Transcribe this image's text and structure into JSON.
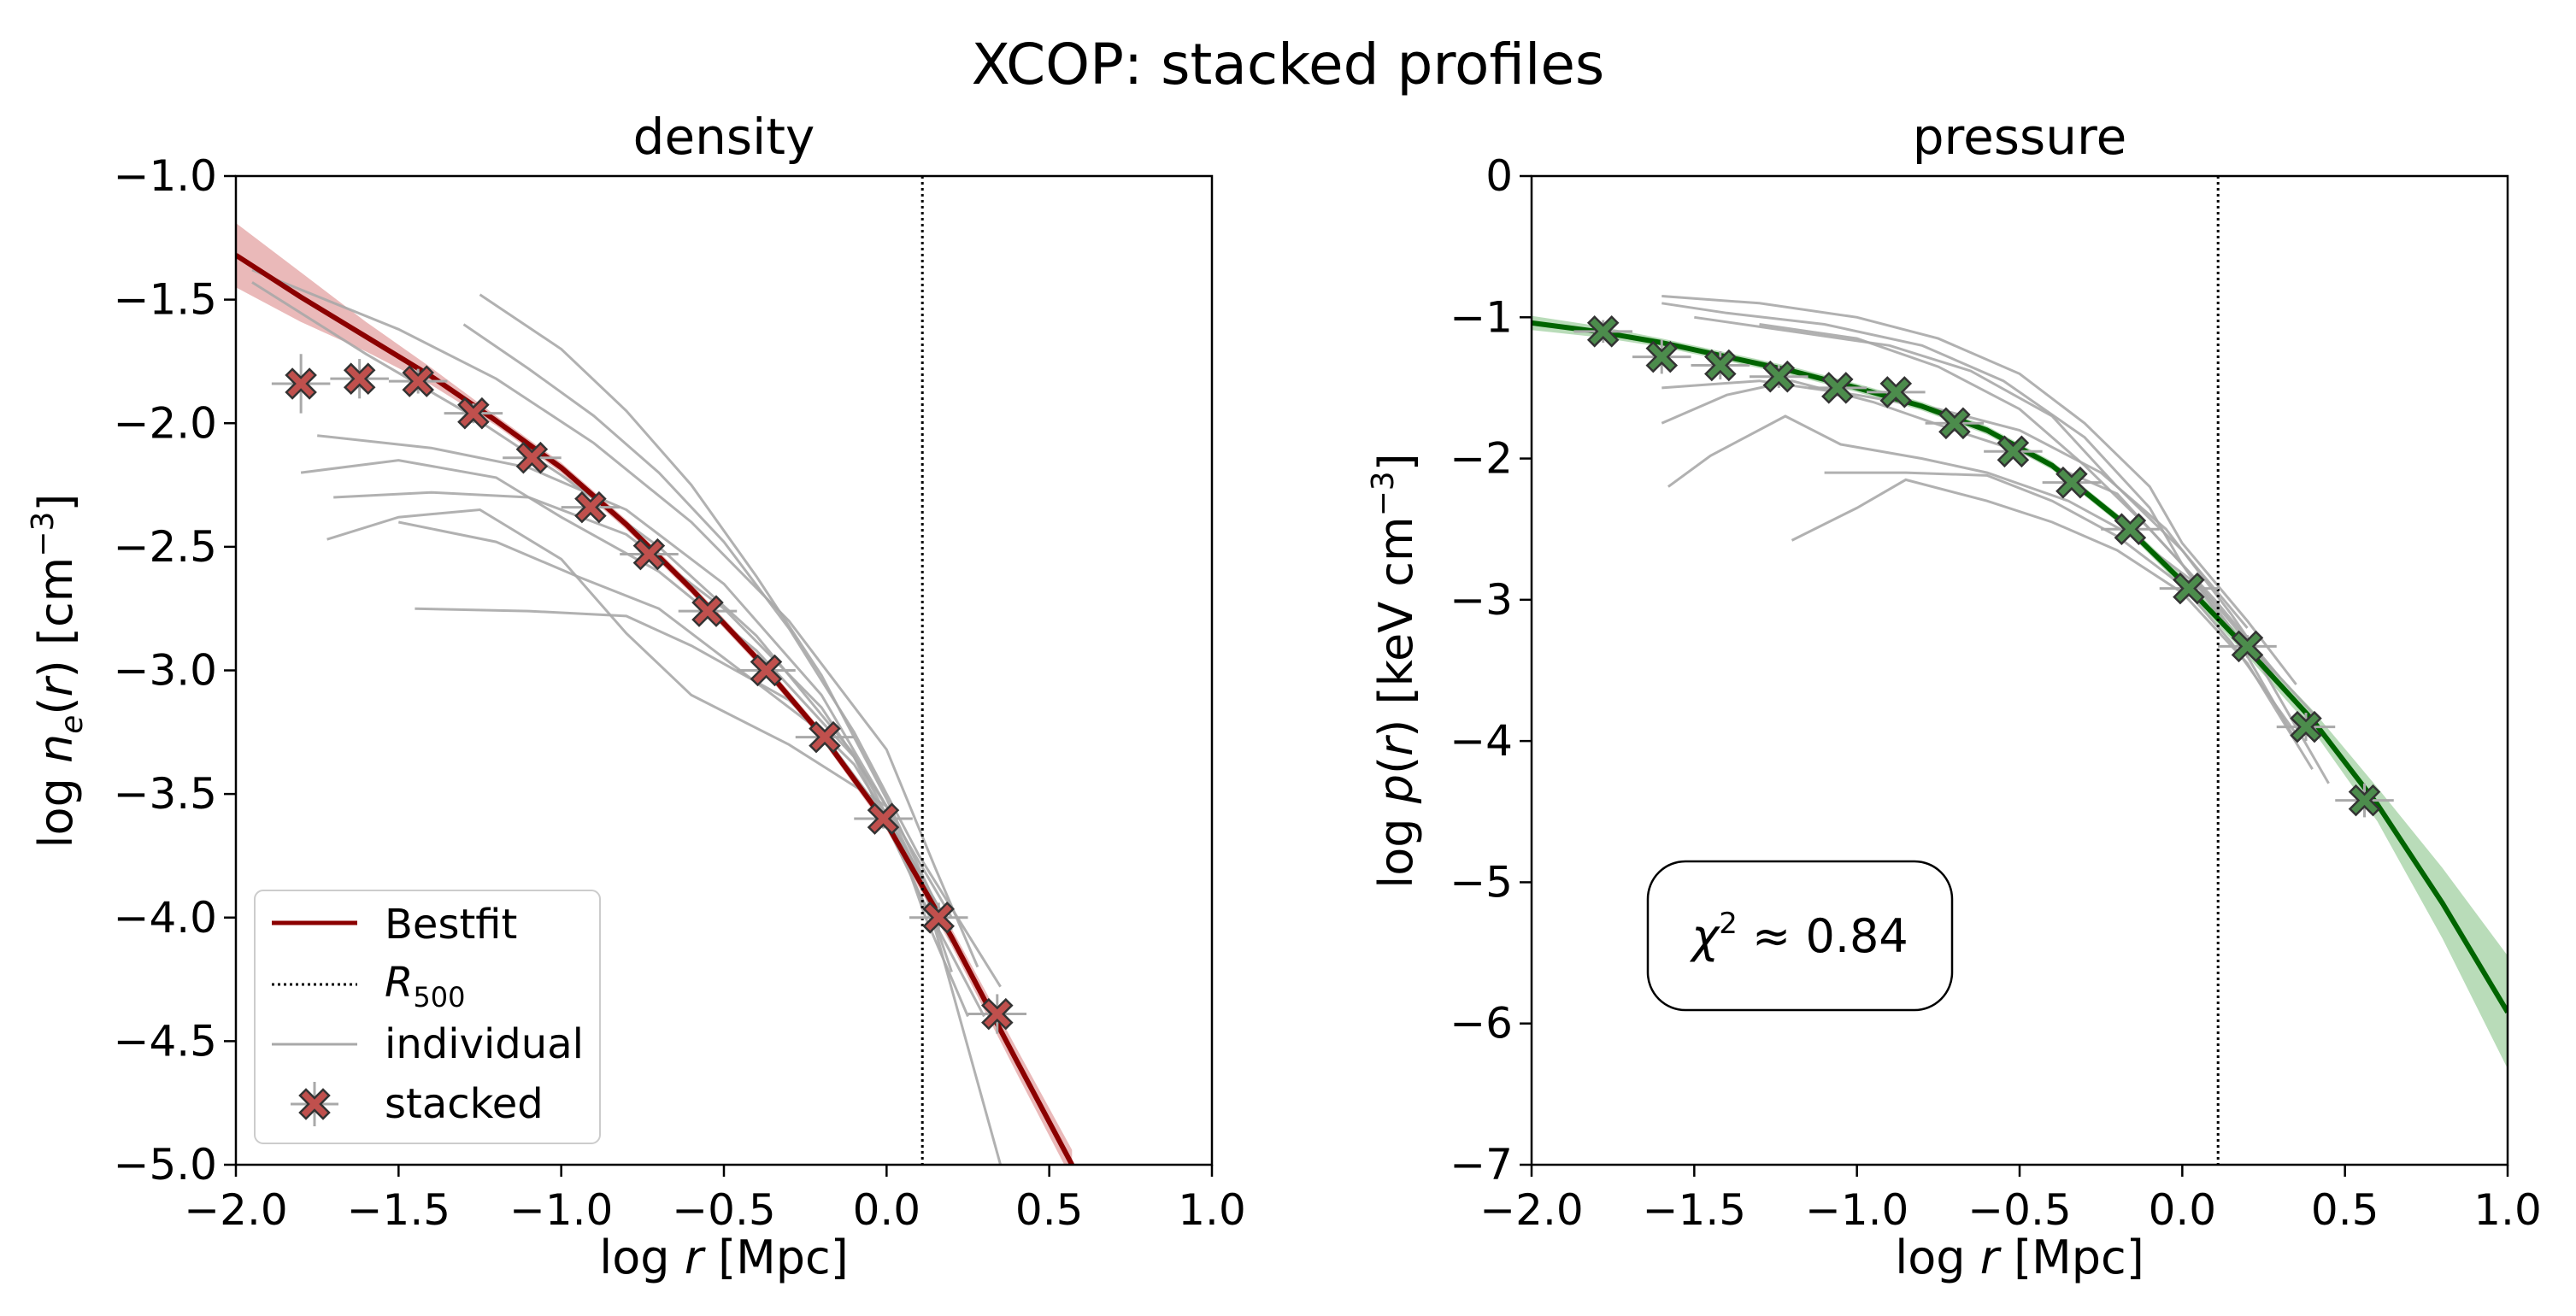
{
  "figure_title": "XCOP: stacked profiles",
  "chart_data": [
    {
      "type": "line",
      "title": "density",
      "xlabel": "log r [Mpc]",
      "ylabel": "log n_e(r) [cm^-3]",
      "xlim": [
        -2.0,
        1.0
      ],
      "ylim": [
        -5.0,
        -1.0
      ],
      "xticks": [
        -2.0,
        -1.5,
        -1.0,
        -0.5,
        0.0,
        0.5,
        1.0
      ],
      "xtick_labels": [
        "−2.0",
        "−1.5",
        "−1.0",
        "−0.5",
        "0.0",
        "0.5",
        "1.0"
      ],
      "yticks": [
        -5.0,
        -4.5,
        -4.0,
        -3.5,
        -3.0,
        -2.5,
        -2.0,
        -1.5,
        -1.0
      ],
      "ytick_labels": [
        "−5.0",
        "−4.5",
        "−4.0",
        "−3.5",
        "−3.0",
        "−2.5",
        "−2.0",
        "−1.5",
        "−1.0"
      ],
      "r500": 0.11,
      "color": "#8b0000",
      "band_color": "#d98080",
      "marker_color": "#c0504d",
      "bestfit": {
        "x": [
          -2.0,
          -1.8,
          -1.6,
          -1.4,
          -1.2,
          -1.0,
          -0.8,
          -0.6,
          -0.4,
          -0.2,
          0.0,
          0.2,
          0.4,
          0.57
        ],
        "y": [
          -1.32,
          -1.49,
          -1.65,
          -1.81,
          -1.99,
          -2.18,
          -2.41,
          -2.67,
          -2.95,
          -3.26,
          -3.62,
          -4.08,
          -4.58,
          -5.0
        ],
        "band_half_width": [
          0.13,
          0.1,
          0.06,
          0.035,
          0.02,
          0.02,
          0.02,
          0.02,
          0.02,
          0.02,
          0.025,
          0.035,
          0.05,
          0.06
        ]
      },
      "stacked": {
        "x": [
          -1.8,
          -1.62,
          -1.44,
          -1.27,
          -1.09,
          -0.91,
          -0.73,
          -0.55,
          -0.37,
          -0.19,
          -0.01,
          0.16,
          0.34
        ],
        "y": [
          -1.84,
          -1.82,
          -1.83,
          -1.96,
          -2.14,
          -2.34,
          -2.53,
          -2.76,
          -3.0,
          -3.27,
          -3.6,
          -4.0,
          -4.39
        ],
        "xerr": 0.09,
        "yerr": [
          0.12,
          0.08,
          0.05,
          0.04,
          0.03,
          0.03,
          0.03,
          0.03,
          0.03,
          0.03,
          0.04,
          0.06,
          0.08
        ]
      },
      "individual": [
        {
          "x": [
            -1.95,
            -1.6,
            -1.3,
            -1.0,
            -0.7,
            -0.4,
            -0.1,
            0.1,
            0.2
          ],
          "y": [
            -1.43,
            -1.72,
            -1.95,
            -2.21,
            -2.5,
            -2.86,
            -3.34,
            -3.83,
            -4.22
          ]
        },
        {
          "x": [
            -1.95,
            -1.5,
            -1.2,
            -0.9,
            -0.6,
            -0.3,
            0.0,
            0.15,
            0.28
          ],
          "y": [
            -1.38,
            -1.62,
            -1.82,
            -2.08,
            -2.4,
            -2.8,
            -3.32,
            -3.8,
            -4.2
          ]
        },
        {
          "x": [
            -1.3,
            -1.1,
            -0.9,
            -0.7,
            -0.5,
            -0.3,
            -0.1,
            0.1,
            0.35
          ],
          "y": [
            -1.6,
            -1.78,
            -1.97,
            -2.2,
            -2.48,
            -2.83,
            -3.25,
            -3.75,
            -4.28
          ]
        },
        {
          "x": [
            -1.25,
            -1.0,
            -0.8,
            -0.6,
            -0.4,
            -0.2,
            0.0,
            0.2
          ],
          "y": [
            -1.48,
            -1.7,
            -1.95,
            -2.25,
            -2.62,
            -3.02,
            -3.52,
            -4.08
          ]
        },
        {
          "x": [
            -1.75,
            -1.4,
            -1.1,
            -0.8,
            -0.5,
            -0.2,
            0.0,
            0.2
          ],
          "y": [
            -2.05,
            -2.1,
            -2.18,
            -2.35,
            -2.65,
            -3.1,
            -3.55,
            -4.1
          ]
        },
        {
          "x": [
            -1.8,
            -1.5,
            -1.2,
            -1.0,
            -0.7,
            -0.4,
            -0.1,
            0.1,
            0.3
          ],
          "y": [
            -2.2,
            -2.15,
            -2.22,
            -2.38,
            -2.6,
            -2.92,
            -3.35,
            -3.9,
            -4.4
          ]
        },
        {
          "x": [
            -1.7,
            -1.4,
            -1.1,
            -0.8,
            -0.5,
            -0.2,
            0.0,
            0.2
          ],
          "y": [
            -2.3,
            -2.28,
            -2.3,
            -2.45,
            -2.75,
            -3.15,
            -3.55,
            -4.0
          ]
        },
        {
          "x": [
            -1.72,
            -1.5,
            -1.25,
            -1.0,
            -0.8,
            -0.6,
            -0.3,
            0.0,
            0.12,
            0.25
          ],
          "y": [
            -2.47,
            -2.38,
            -2.35,
            -2.55,
            -2.85,
            -3.1,
            -3.3,
            -3.55,
            -4.0,
            -4.4
          ]
        },
        {
          "x": [
            -1.5,
            -1.2,
            -0.95,
            -0.7,
            -0.5,
            -0.2,
            0.0,
            0.15,
            0.35
          ],
          "y": [
            -2.4,
            -2.48,
            -2.62,
            -2.75,
            -2.95,
            -3.25,
            -3.6,
            -4.05,
            -5.0
          ]
        },
        {
          "x": [
            -1.45,
            -1.1,
            -0.8,
            -0.6,
            -0.3,
            -0.1,
            0.05,
            0.2
          ],
          "y": [
            -2.75,
            -2.76,
            -2.78,
            -2.9,
            -3.12,
            -3.38,
            -3.7,
            -4.05
          ]
        }
      ],
      "legend": {
        "location": "lower-left",
        "entries": [
          "Bestfit",
          "R_500",
          "individual",
          "stacked"
        ]
      }
    },
    {
      "type": "line",
      "title": "pressure",
      "xlabel": "log r [Mpc]",
      "ylabel": "log p(r) [keV cm^-3]",
      "xlim": [
        -2.0,
        1.0
      ],
      "ylim": [
        -7,
        0
      ],
      "xticks": [
        -2.0,
        -1.5,
        -1.0,
        -0.5,
        0.0,
        0.5,
        1.0
      ],
      "xtick_labels": [
        "−2.0",
        "−1.5",
        "−1.0",
        "−0.5",
        "0.0",
        "0.5",
        "1.0"
      ],
      "yticks": [
        -7,
        -6,
        -5,
        -4,
        -3,
        -2,
        -1,
        0
      ],
      "ytick_labels": [
        "−7",
        "−6",
        "−5",
        "−4",
        "−3",
        "−2",
        "−1",
        "0"
      ],
      "r500": 0.11,
      "color": "#006400",
      "band_color": "#7fbf7f",
      "marker_color": "#4c8c4c",
      "bestfit": {
        "x": [
          -2.0,
          -1.8,
          -1.6,
          -1.4,
          -1.2,
          -1.0,
          -0.8,
          -0.6,
          -0.4,
          -0.2,
          0.0,
          0.2,
          0.4,
          0.6,
          0.8,
          1.0
        ],
        "y": [
          -1.04,
          -1.1,
          -1.18,
          -1.28,
          -1.38,
          -1.5,
          -1.63,
          -1.8,
          -2.05,
          -2.42,
          -2.87,
          -3.35,
          -3.85,
          -4.45,
          -5.15,
          -5.92
        ],
        "band_half_width": [
          0.05,
          0.04,
          0.03,
          0.03,
          0.03,
          0.03,
          0.03,
          0.03,
          0.03,
          0.03,
          0.04,
          0.05,
          0.07,
          0.12,
          0.25,
          0.4
        ]
      },
      "stacked": {
        "x": [
          -1.78,
          -1.6,
          -1.42,
          -1.24,
          -1.06,
          -0.88,
          -0.7,
          -0.52,
          -0.34,
          -0.16,
          0.02,
          0.2,
          0.38,
          0.56
        ],
        "y": [
          -1.1,
          -1.28,
          -1.34,
          -1.42,
          -1.5,
          -1.53,
          -1.75,
          -1.95,
          -2.17,
          -2.5,
          -2.92,
          -3.33,
          -3.9,
          -4.42
        ],
        "xerr": 0.09,
        "yerr": [
          0.08,
          0.12,
          0.1,
          0.08,
          0.06,
          0.05,
          0.05,
          0.05,
          0.05,
          0.05,
          0.06,
          0.08,
          0.1,
          0.12
        ]
      },
      "individual": [
        {
          "x": [
            -1.6,
            -1.3,
            -1.0,
            -0.75,
            -0.5,
            -0.3,
            -0.1,
            0.0,
            0.2,
            0.35
          ],
          "y": [
            -0.85,
            -0.9,
            -1.0,
            -1.15,
            -1.4,
            -1.75,
            -2.2,
            -2.6,
            -3.15,
            -3.6
          ]
        },
        {
          "x": [
            -1.6,
            -1.4,
            -1.1,
            -0.8,
            -0.55,
            -0.3,
            -0.1,
            0.0,
            0.2,
            0.4
          ],
          "y": [
            -0.9,
            -0.97,
            -1.05,
            -1.2,
            -1.45,
            -1.85,
            -2.35,
            -2.75,
            -3.3,
            -3.8
          ]
        },
        {
          "x": [
            -1.5,
            -1.2,
            -0.9,
            -0.65,
            -0.4,
            -0.2,
            0.0,
            0.2
          ],
          "y": [
            -1.0,
            -1.1,
            -1.2,
            -1.38,
            -1.7,
            -2.2,
            -2.65,
            -3.2
          ]
        },
        {
          "x": [
            -1.3,
            -1.0,
            -0.75,
            -0.5,
            -0.3,
            -0.1,
            0.1,
            0.3
          ],
          "y": [
            -1.05,
            -1.15,
            -1.35,
            -1.65,
            -2.05,
            -2.5,
            -3.0,
            -3.55
          ]
        },
        {
          "x": [
            -1.6,
            -1.3,
            -1.0,
            -0.75,
            -0.5,
            -0.25,
            -0.05,
            0.15,
            0.3
          ],
          "y": [
            -1.5,
            -1.45,
            -1.55,
            -1.65,
            -1.8,
            -2.1,
            -2.5,
            -3.1,
            -3.6
          ]
        },
        {
          "x": [
            -1.6,
            -1.4,
            -1.2,
            -0.95,
            -0.7,
            -0.5,
            -0.2,
            0.0,
            0.2,
            0.35
          ],
          "y": [
            -1.75,
            -1.55,
            -1.45,
            -1.6,
            -1.8,
            -1.95,
            -2.25,
            -2.75,
            -3.4,
            -4.0
          ]
        },
        {
          "x": [
            -1.58,
            -1.45,
            -1.22,
            -1.05,
            -0.8,
            -0.6,
            -0.35,
            -0.15,
            0.05,
            0.25,
            0.45
          ],
          "y": [
            -2.2,
            -1.98,
            -1.7,
            -1.9,
            -2.0,
            -2.1,
            -2.3,
            -2.55,
            -2.9,
            -3.5,
            -4.3
          ]
        },
        {
          "x": [
            -1.1,
            -0.85,
            -0.6,
            -0.4,
            -0.2,
            0.0,
            0.15,
            0.35
          ],
          "y": [
            -2.1,
            -2.1,
            -2.12,
            -2.3,
            -2.55,
            -2.9,
            -3.3,
            -3.95
          ]
        },
        {
          "x": [
            -1.2,
            -1.0,
            -0.85,
            -0.6,
            -0.4,
            -0.2,
            0.0,
            0.2,
            0.4
          ],
          "y": [
            -2.58,
            -2.35,
            -2.15,
            -2.3,
            -2.45,
            -2.65,
            -2.95,
            -3.45,
            -4.2
          ]
        }
      ],
      "annotation": "χ² ≈ 0.84",
      "annotation_parts": {
        "symbol": "χ",
        "power": "2",
        "text": " ≈ 0.84"
      }
    }
  ],
  "labels": {
    "density_ylabel_log": "log ",
    "density_ylabel_var": "n",
    "density_ylabel_sub": "e",
    "density_ylabel_arg": "(",
    "density_ylabel_r": "r",
    "density_ylabel_close": ")",
    "density_ylabel_unit": " [cm",
    "density_ylabel_pow": "−3",
    "density_ylabel_end": "]",
    "pressure_ylabel_log": "log ",
    "pressure_ylabel_var": "p",
    "pressure_ylabel_arg": "(",
    "pressure_ylabel_r": "r",
    "pressure_ylabel_close": ")",
    "pressure_ylabel_unit": " [keV cm",
    "pressure_ylabel_pow": "−3",
    "pressure_ylabel_end": "]",
    "xlabel_log": "log ",
    "xlabel_r": "r",
    "xlabel_unit": " [Mpc]",
    "legend_bestfit": "Bestfit",
    "legend_r": "R",
    "legend_r_sub": "500",
    "legend_individual": "individual",
    "legend_stacked": "stacked"
  }
}
